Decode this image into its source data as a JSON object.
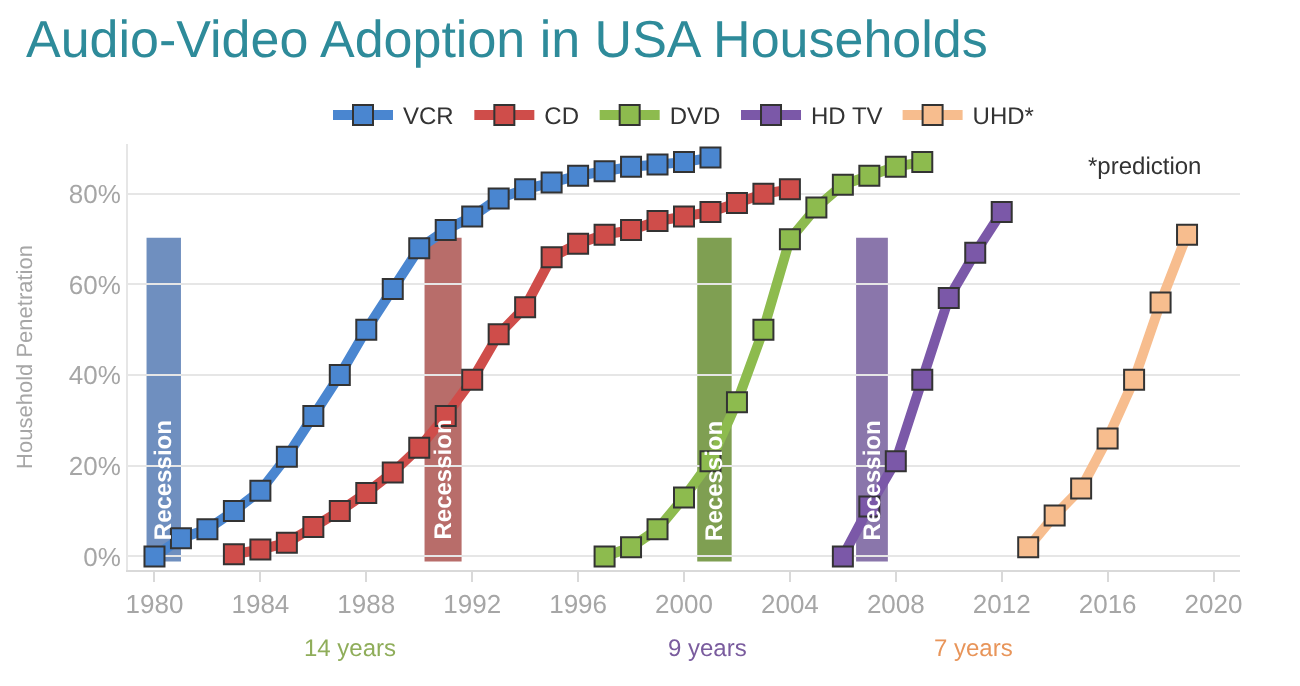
{
  "chart_data": {
    "type": "line",
    "title": "Audio-Video Adoption in USA Households",
    "ylabel": "Household Penetration",
    "xlim": [
      1979,
      2021
    ],
    "xticks": [
      1980,
      1984,
      1988,
      1992,
      1996,
      2000,
      2004,
      2008,
      2012,
      2016,
      2020
    ],
    "ylim": [
      -3,
      91
    ],
    "yticks": [
      {
        "value": 0,
        "label": "0%"
      },
      {
        "value": 20,
        "label": "20%"
      },
      {
        "value": 40,
        "label": "40%"
      },
      {
        "value": 60,
        "label": "60%"
      },
      {
        "value": 80,
        "label": "80%"
      }
    ],
    "grid": "y",
    "legend": "top",
    "marker": "square",
    "line_style": "solid",
    "series": [
      {
        "name": "VCR",
        "color": "#4a86d0",
        "x": [
          1980,
          1981,
          1982,
          1983,
          1984,
          1985,
          1986,
          1987,
          1988,
          1989,
          1990,
          1991,
          1992,
          1993,
          1994,
          1995,
          1996,
          1997,
          1998,
          1999,
          2000,
          2001
        ],
        "values": [
          0,
          4,
          6,
          10,
          14.5,
          22,
          31,
          40,
          50,
          59,
          68,
          72,
          75,
          79,
          81,
          82.5,
          84,
          85,
          86,
          86.5,
          87,
          88
        ]
      },
      {
        "name": "CD",
        "color": "#cf4d4a",
        "x": [
          1983,
          1984,
          1985,
          1986,
          1987,
          1988,
          1989,
          1990,
          1991,
          1992,
          1993,
          1994,
          1995,
          1996,
          1997,
          1998,
          1999,
          2000,
          2001,
          2002,
          2003,
          2004
        ],
        "values": [
          0.5,
          1.5,
          3,
          6.5,
          10,
          14,
          18.5,
          24,
          31,
          39,
          49,
          55,
          66,
          69,
          71,
          72,
          74,
          75,
          76,
          78,
          80,
          81
        ]
      },
      {
        "name": "DVD",
        "color": "#8dbb4e",
        "x": [
          1997,
          1998,
          1999,
          2000,
          2001,
          2002,
          2003,
          2004,
          2005,
          2006,
          2007,
          2008,
          2009
        ],
        "values": [
          0,
          2,
          6,
          13,
          21,
          34,
          50,
          70,
          77,
          82,
          84,
          86,
          87
        ]
      },
      {
        "name": "HD TV",
        "color": "#7b58a8",
        "x": [
          2006,
          2007,
          2008,
          2009,
          2010,
          2011,
          2012
        ],
        "values": [
          0,
          11,
          21,
          39,
          57,
          67,
          76
        ]
      },
      {
        "name": "UHD*",
        "color": "#f7bd8e",
        "x": [
          2013,
          2014,
          2015,
          2016,
          2017,
          2018,
          2019
        ],
        "values": [
          2,
          9,
          15,
          26,
          39,
          56,
          71
        ]
      }
    ],
    "bands": [
      {
        "axis": "x",
        "from": 1979.7,
        "to": 1981.0,
        "label": "Recession",
        "color": "#6f8fbf"
      },
      {
        "axis": "x",
        "from": 1990.2,
        "to": 1991.6,
        "label": "Recession",
        "color": "#b86d6a"
      },
      {
        "axis": "x",
        "from": 2000.5,
        "to": 2001.8,
        "label": "Recession",
        "color": "#7f9f52"
      },
      {
        "axis": "x",
        "from": 2006.5,
        "to": 2007.7,
        "label": "Recession",
        "color": "#8a76ab"
      }
    ],
    "annotations": [
      "*prediction",
      "14 years",
      "9 years",
      "7 years"
    ]
  }
}
